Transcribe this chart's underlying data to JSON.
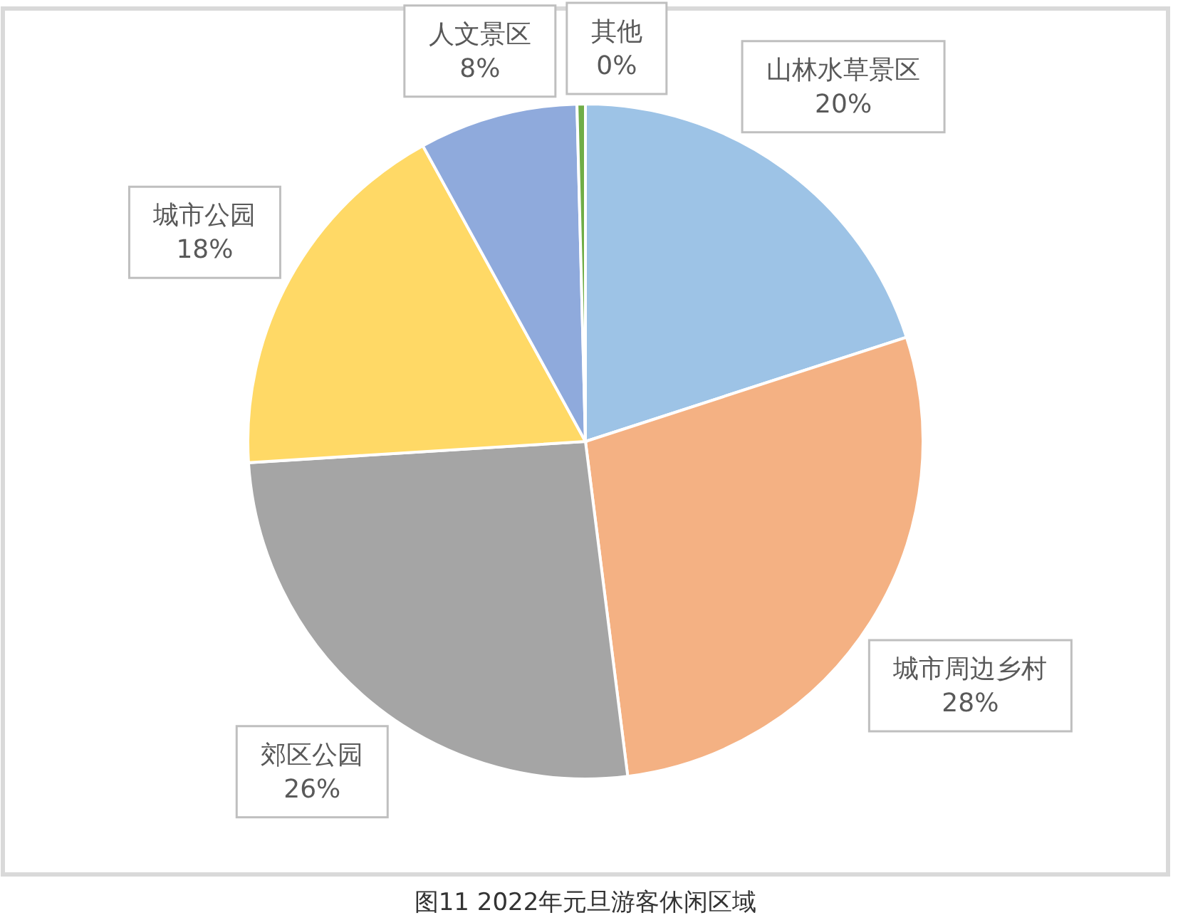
{
  "chart_data": {
    "type": "pie",
    "title": "图11 2022年元旦游客休闲区域",
    "categories": [
      "山林水草景区",
      "城市周边乡村",
      "郊区公园",
      "城市公园",
      "人文景区",
      "其他"
    ],
    "values": [
      20,
      28,
      26,
      18,
      7.6,
      0.4
    ],
    "value_labels": [
      "20%",
      "28%",
      "26%",
      "18%",
      "8%",
      "0%"
    ],
    "colors": [
      "#9dc3e6",
      "#f4b183",
      "#a5a5a5",
      "#ffd966",
      "#8faadc",
      "#70ad47"
    ]
  }
}
